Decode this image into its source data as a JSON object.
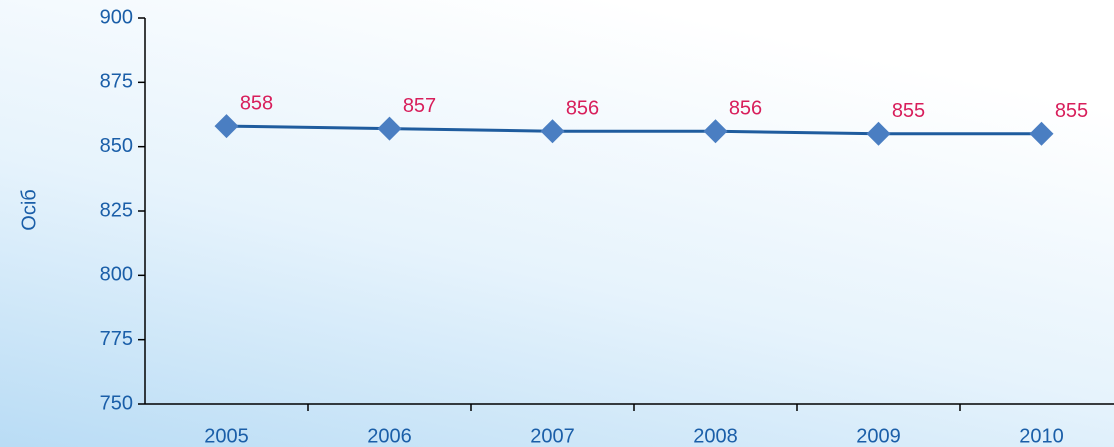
{
  "chart_data": {
    "type": "line",
    "y_label": "Осіб",
    "categories": [
      "2005",
      "2006",
      "2007",
      "2008",
      "2009",
      "2010"
    ],
    "series": [
      {
        "name": null,
        "color": "#1f5c9e",
        "marker_color": "#4a7ec2",
        "values": [
          858,
          857,
          856,
          856,
          855,
          855
        ]
      }
    ],
    "ylim": [
      750,
      900
    ],
    "yticks": [
      750,
      775,
      800,
      825,
      850,
      875,
      900
    ],
    "grid": false
  }
}
